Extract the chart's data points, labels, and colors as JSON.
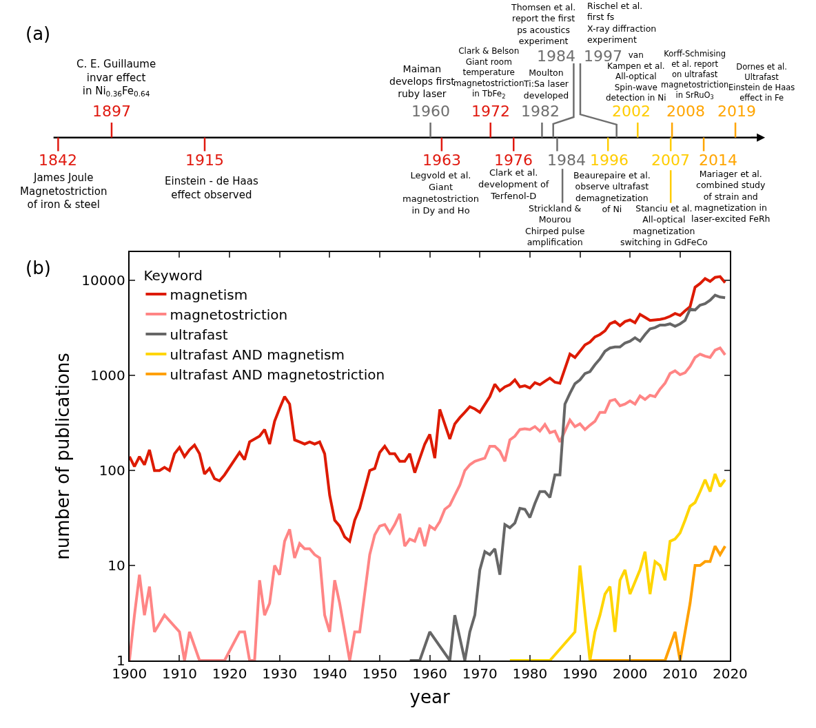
{
  "chart_data": [
    {
      "type": "other",
      "title": "(a)",
      "annotations": [
        "1842",
        "James Joule\nMagnetostriction\nof iron & steel",
        "1897",
        "C. E. Guillaume\ninvar effect\nin Ni$_{0.36}$Fe$_{0.64}$",
        "1915",
        "Einstein - de Haas\neffect observed",
        "1960",
        "Maiman\ndevelops first\nruby laser",
        "1963",
        "Legvold et al.\nGiant\nmagnetostriction\nin Dy and Ho",
        "1972",
        "Clark & Belson\nGiant room\ntemperature\nmagnetostriction\nin TbFe$_{2}$",
        "1976",
        "Clark et al.\ndevelopment of\nTerfenol-D",
        "1982",
        "Moulton\nTi:Sa laser\ndeveloped",
        "1984",
        "Thomsen et al.\nreport the first\nps acoustics\nexperiment",
        "1984",
        "Strickland &\nMourou\nChirped pulse\namplification",
        "1996",
        "Beaurepaire et al.\nobserve ultrafast\ndemagnetization\nof Ni",
        "1997",
        "Rischel et al.\nfirst fs\nX-ray diffraction\nexperiment",
        "2002",
        "van\nKampen et al.\nAll-optical\nSpin-wave\ndetection in Ni",
        "2007",
        "Stanciu et al.\nAll-optical\nmagnetization\nswitching in GdFeCo",
        "2008",
        "Korff-Schmising\net al. report\non ultrafast\nmagnetostriction\nin SrRuO$_{3}$",
        "2014",
        "Mariager et al.\ncombined study\nof strain and\nmagnetization in\nlaser-excited FeRh",
        "2019",
        "Dornes et al.\nUltrafast\nEinstein de Haas\neffect in Fe"
      ]
    },
    {
      "type": "line",
      "title": "(b)",
      "xlabel": "year",
      "ylabel": "number of publications",
      "legend_title": "Keyword",
      "log": "y",
      "xlim": [
        1900,
        2020
      ],
      "ylim": [
        1,
        20000
      ],
      "xticks": [
        1900,
        1910,
        1920,
        1930,
        1940,
        1950,
        1960,
        1970,
        1980,
        1990,
        2000,
        2010,
        2020
      ],
      "yticks": [
        1,
        10,
        100,
        1000,
        10000
      ],
      "legend": "top left",
      "marker": "none",
      "line_style": "solid",
      "series": [
        {
          "name": "magnetism",
          "color": "#dd1a00",
          "x": [
            1900,
            1901,
            1902,
            1903,
            1904,
            1905,
            1906,
            1907,
            1908,
            1909,
            1910,
            1911,
            1912,
            1913,
            1914,
            1915,
            1916,
            1917,
            1918,
            1919,
            1922,
            1923,
            1924,
            1926,
            1927,
            1928,
            1929,
            1930,
            1931,
            1932,
            1933,
            1934,
            1935,
            1936,
            1937,
            1938,
            1939,
            1940,
            1941,
            1942,
            1943,
            1944,
            1945,
            1946,
            1948,
            1949,
            1950,
            1951,
            1952,
            1953,
            1954,
            1955,
            1956,
            1957,
            1959,
            1960,
            1961,
            1962,
            1964,
            1965,
            1966,
            1967,
            1968,
            1969,
            1970,
            1972,
            1973,
            1974,
            1975,
            1976,
            1977,
            1978,
            1979,
            1980,
            1981,
            1982,
            1983,
            1984,
            1985,
            1986,
            1988,
            1989,
            1990,
            1991,
            1992,
            1993,
            1994,
            1995,
            1996,
            1997,
            1998,
            1999,
            2000,
            2001,
            2002,
            2003,
            2004,
            2005,
            2006,
            2007,
            2008,
            2009,
            2010,
            2011,
            2012,
            2013,
            2014,
            2015,
            2016,
            2017,
            2018,
            2019
          ],
          "values": [
            140,
            110,
            140,
            115,
            165,
            100,
            100,
            108,
            100,
            150,
            175,
            140,
            165,
            185,
            150,
            92,
            105,
            82,
            78,
            90,
            155,
            130,
            200,
            230,
            270,
            190,
            330,
            450,
            600,
            500,
            210,
            200,
            190,
            200,
            190,
            200,
            150,
            55,
            30,
            26,
            20,
            18,
            30,
            40,
            100,
            105,
            155,
            180,
            150,
            150,
            125,
            125,
            150,
            95,
            190,
            240,
            135,
            440,
            215,
            310,
            360,
            410,
            470,
            445,
            410,
            600,
            810,
            690,
            760,
            800,
            900,
            760,
            780,
            740,
            840,
            800,
            870,
            940,
            850,
            830,
            1680,
            1550,
            1800,
            2100,
            2250,
            2550,
            2700,
            2950,
            3500,
            3700,
            3350,
            3700,
            3850,
            3600,
            4400,
            4100,
            3800,
            3850,
            3900,
            4000,
            4200,
            4500,
            4300,
            4800,
            5300,
            8500,
            9300,
            10500,
            9800,
            10800,
            11000,
            9500
          ]
        },
        {
          "name": "magnetostriction",
          "color": "#ff8585",
          "x": [
            1900,
            1901,
            1902,
            1903,
            1904,
            1905,
            1907,
            1910,
            1911,
            1912,
            1914,
            1919,
            1922,
            1923,
            1924,
            1925,
            1926,
            1927,
            1928,
            1929,
            1930,
            1931,
            1932,
            1933,
            1934,
            1935,
            1936,
            1937,
            1938,
            1939,
            1940,
            1941,
            1942,
            1944,
            1945,
            1946,
            1948,
            1949,
            1950,
            1951,
            1952,
            1953,
            1954,
            1955,
            1956,
            1957,
            1958,
            1959,
            1960,
            1961,
            1962,
            1963,
            1964,
            1965,
            1966,
            1967,
            1968,
            1969,
            1970,
            1971,
            1972,
            1973,
            1974,
            1975,
            1976,
            1977,
            1978,
            1979,
            1980,
            1981,
            1982,
            1983,
            1984,
            1985,
            1986,
            1987,
            1988,
            1989,
            1990,
            1991,
            1992,
            1993,
            1994,
            1995,
            1996,
            1997,
            1998,
            1999,
            2000,
            2001,
            2002,
            2003,
            2004,
            2005,
            2006,
            2007,
            2008,
            2009,
            2010,
            2011,
            2012,
            2013,
            2014,
            2015,
            2016,
            2017,
            2018,
            2019
          ],
          "values": [
            1,
            3,
            8,
            3,
            6,
            2,
            3,
            2,
            1,
            2,
            1,
            1,
            2,
            2,
            1,
            1,
            7,
            3,
            4,
            10,
            8,
            18,
            24,
            12,
            17,
            15,
            15,
            13,
            12,
            3,
            2,
            7,
            4,
            1,
            2,
            2,
            13,
            21,
            26,
            27,
            22,
            27,
            35,
            16,
            19,
            18,
            25,
            16,
            26,
            24,
            29,
            39,
            43,
            55,
            70,
            100,
            115,
            125,
            130,
            135,
            180,
            180,
            160,
            125,
            210,
            230,
            270,
            275,
            270,
            290,
            260,
            305,
            250,
            260,
            200,
            260,
            340,
            290,
            310,
            270,
            300,
            330,
            410,
            410,
            540,
            560,
            480,
            500,
            540,
            500,
            610,
            560,
            620,
            600,
            720,
            830,
            1050,
            1120,
            1020,
            1070,
            1250,
            1550,
            1680,
            1600,
            1550,
            1850,
            1950,
            1650
          ]
        },
        {
          "name": "ultrafast",
          "color": "#666666",
          "x": [
            1956,
            1958,
            1960,
            1964,
            1965,
            1967,
            1968,
            1969,
            1970,
            1971,
            1972,
            1973,
            1974,
            1975,
            1976,
            1977,
            1978,
            1979,
            1980,
            1981,
            1982,
            1983,
            1984,
            1985,
            1986,
            1987,
            1988,
            1989,
            1990,
            1991,
            1992,
            1993,
            1994,
            1995,
            1996,
            1997,
            1998,
            1999,
            2000,
            2001,
            2002,
            2003,
            2004,
            2005,
            2006,
            2007,
            2008,
            2009,
            2010,
            2011,
            2012,
            2013,
            2014,
            2015,
            2016,
            2017,
            2018,
            2019
          ],
          "values": [
            1,
            1,
            2,
            1,
            3,
            1,
            2,
            3,
            9,
            14,
            13,
            15,
            8,
            27,
            25,
            28,
            40,
            39,
            32,
            45,
            60,
            60,
            52,
            90,
            90,
            500,
            650,
            820,
            900,
            1050,
            1100,
            1300,
            1500,
            1800,
            1950,
            2000,
            2000,
            2200,
            2300,
            2500,
            2300,
            2700,
            3100,
            3200,
            3400,
            3400,
            3500,
            3300,
            3500,
            3800,
            5000,
            4900,
            5500,
            5700,
            6200,
            7000,
            6700,
            6600
          ]
        },
        {
          "name": "ultrafast AND magnetism",
          "color": "#ffd500",
          "x": [
            1976,
            1984,
            1989,
            1990,
            1992,
            1993,
            1994,
            1995,
            1996,
            1997,
            1998,
            1999,
            2000,
            2002,
            2003,
            2004,
            2005,
            2006,
            2007,
            2008,
            2009,
            2010,
            2011,
            2012,
            2013,
            2014,
            2015,
            2016,
            2017,
            2018,
            2019
          ],
          "values": [
            1,
            1,
            2,
            10,
            1,
            2,
            3,
            5,
            6,
            2,
            7,
            9,
            5,
            9,
            14,
            5,
            11,
            10,
            7,
            18,
            19,
            22,
            30,
            42,
            46,
            60,
            80,
            60,
            92,
            68,
            80
          ]
        },
        {
          "name": "ultrafast AND magnetostriction",
          "color": "#ffa000",
          "x": [
            1992,
            2007,
            2009,
            2010,
            2012,
            2013,
            2014,
            2015,
            2016,
            2017,
            2018,
            2019
          ],
          "values": [
            1,
            1,
            2,
            1,
            4,
            10,
            10,
            11,
            11,
            16,
            13,
            16
          ]
        }
      ]
    }
  ]
}
